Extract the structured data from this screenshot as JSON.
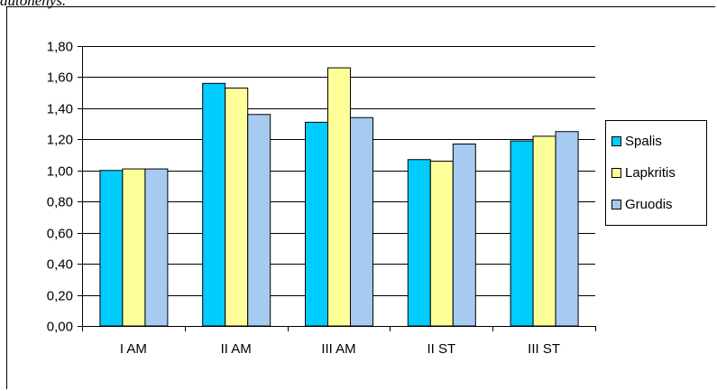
{
  "header_text": "autonenys.",
  "chart_data": {
    "type": "bar",
    "categories": [
      "I AM",
      "II AM",
      "III AM",
      "II ST",
      "III ST"
    ],
    "series": [
      {
        "name": "Spalis",
        "color": "#00CCFF",
        "values": [
          1.0,
          1.56,
          1.31,
          1.07,
          1.19
        ]
      },
      {
        "name": "Lapkritis",
        "color": "#FFFF99",
        "values": [
          1.01,
          1.53,
          1.66,
          1.06,
          1.22
        ]
      },
      {
        "name": "Gruodis",
        "color": "#A6CAF0",
        "values": [
          1.01,
          1.36,
          1.34,
          1.17,
          1.25
        ]
      }
    ],
    "yticks": [
      "0,00",
      "0,20",
      "0,40",
      "0,60",
      "0,80",
      "1,00",
      "1,20",
      "1,40",
      "1,60",
      "1,80"
    ],
    "ylim": [
      0,
      1.8
    ],
    "grid": true,
    "legend_position": "right"
  }
}
